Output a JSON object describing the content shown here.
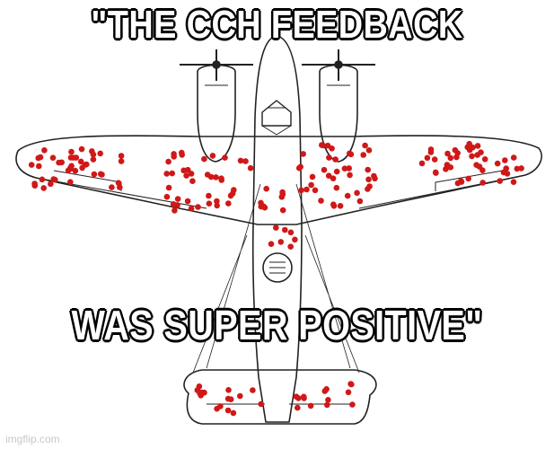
{
  "meme": {
    "top_text": "\"THE CCH FEEDBACK",
    "bottom_text": "WAS SUPER POSITIVE\"",
    "watermark": "imgflip.com"
  },
  "colors": {
    "outline": "#222222",
    "damage_dots": "#d01818",
    "caption_fill": "#ffffff",
    "caption_stroke": "#000000"
  }
}
